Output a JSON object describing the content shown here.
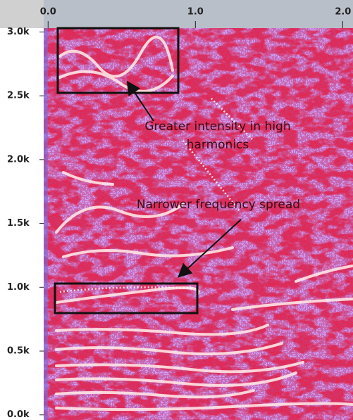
{
  "chart_data": {
    "type": "spectrogram",
    "xlim": [
      -0.03,
      2.07
    ],
    "xticks": [
      {
        "value": 0,
        "label": "0.0"
      },
      {
        "value": 1,
        "label": "1.0"
      },
      {
        "value": 2,
        "label": "2.0"
      }
    ],
    "ylim": [
      -40,
      3030
    ],
    "yticks": [
      {
        "value": 0,
        "label": "0.0k"
      },
      {
        "value": 500,
        "label": "0.5k"
      },
      {
        "value": 1000,
        "label": "1.0k"
      },
      {
        "value": 1500,
        "label": "1.5k"
      },
      {
        "value": 2000,
        "label": "2.0k"
      },
      {
        "value": 2500,
        "label": "2.5k"
      },
      {
        "value": 3000,
        "label": "3.0k"
      }
    ],
    "annotations": [
      {
        "lines": [
          "Greater intensity in high",
          "harmonics"
        ]
      },
      {
        "lines": [
          "Narrower frequency spread"
        ]
      }
    ]
  }
}
